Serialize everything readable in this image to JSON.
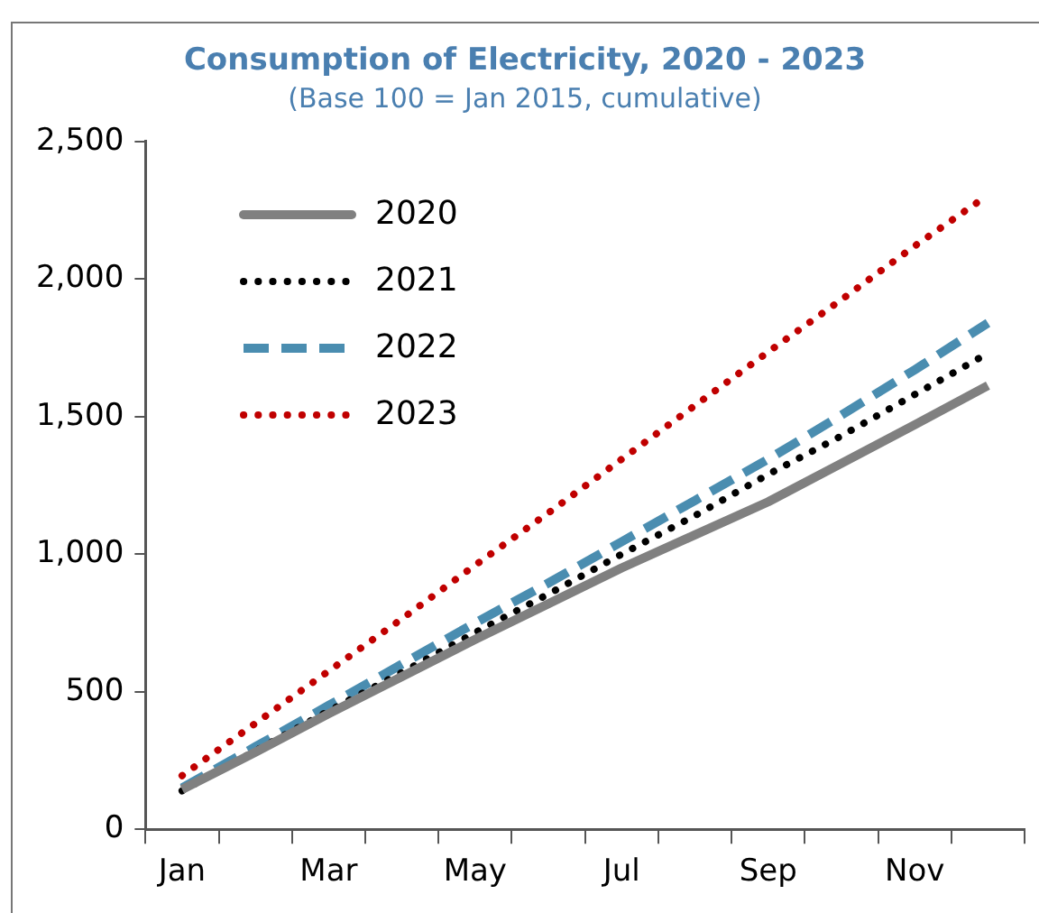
{
  "chart_data": {
    "type": "line",
    "title": "Consumption of Electricity, 2020 - 2023",
    "subtitle": "(Base 100 = Jan 2015, cumulative)",
    "categories": [
      "Jan",
      null,
      "Mar",
      null,
      "May",
      null,
      "Jul",
      null,
      "Sep",
      null,
      "Nov",
      null
    ],
    "series": [
      {
        "name": "2020",
        "color": "#808080",
        "line_style": "solid",
        "values": [
          145,
          280,
          420,
          555,
          690,
          820,
          950,
          1070,
          1190,
          1330,
          1470,
          1613
        ]
      },
      {
        "name": "2021",
        "color": "#000000",
        "line_style": "dotted",
        "values": [
          140,
          285,
          430,
          570,
          715,
          855,
          1000,
          1140,
          1290,
          1430,
          1580,
          1730
        ]
      },
      {
        "name": "2022",
        "color": "#4a8db0",
        "line_style": "dashed",
        "values": [
          150,
          300,
          450,
          600,
          750,
          895,
          1045,
          1195,
          1345,
          1505,
          1670,
          1840
        ]
      },
      {
        "name": "2023",
        "color": "#c00000",
        "line_style": "dotted",
        "values": [
          195,
          385,
          575,
          765,
          960,
          1150,
          1345,
          1540,
          1735,
          1925,
          2120,
          2305
        ]
      }
    ],
    "ylim": [
      0,
      2500
    ],
    "yticks": [
      0,
      500,
      {
        "value": 1000,
        "label": "1,000"
      },
      {
        "value": 1500,
        "label": "1,500"
      },
      {
        "value": 2000,
        "label": "2,000"
      },
      {
        "value": 2500,
        "label": "2,500"
      }
    ],
    "grid": false,
    "legend": "top left",
    "marker": "none"
  }
}
